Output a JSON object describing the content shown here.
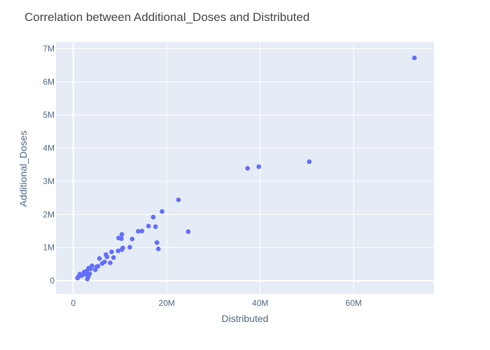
{
  "chart_data": {
    "type": "scatter",
    "title": "Correlation between Additional_Doses and Distributed",
    "xlabel": "Distributed",
    "ylabel": "Additional_Doses",
    "xlim": [
      -3700000,
      77200000
    ],
    "ylim": [
      -400000,
      7200000
    ],
    "x_ticks": [
      0,
      20000000,
      40000000,
      60000000
    ],
    "x_tick_labels": [
      "0",
      "20M",
      "40M",
      "60M"
    ],
    "y_ticks": [
      0,
      1000000,
      2000000,
      3000000,
      4000000,
      5000000,
      6000000,
      7000000
    ],
    "y_tick_labels": [
      "0",
      "1M",
      "2M",
      "3M",
      "4M",
      "5M",
      "6M",
      "7M"
    ],
    "grid": true,
    "colors": {
      "plot_bg": "#e5ecf6",
      "grid": "#ffffff",
      "marker": "#636efa"
    },
    "series": [
      {
        "points": [
          [
            900000,
            80000
          ],
          [
            1100000,
            120000
          ],
          [
            1400000,
            200000
          ],
          [
            1700000,
            150000
          ],
          [
            2000000,
            180000
          ],
          [
            2300000,
            260000
          ],
          [
            2600000,
            200000
          ],
          [
            2900000,
            300000
          ],
          [
            3000000,
            50000
          ],
          [
            3200000,
            120000
          ],
          [
            3300000,
            380000
          ],
          [
            3500000,
            210000
          ],
          [
            3700000,
            360000
          ],
          [
            4000000,
            450000
          ],
          [
            4700000,
            330000
          ],
          [
            5000000,
            420000
          ],
          [
            5300000,
            440000
          ],
          [
            5600000,
            670000
          ],
          [
            6200000,
            520000
          ],
          [
            6700000,
            570000
          ],
          [
            7000000,
            790000
          ],
          [
            7200000,
            720000
          ],
          [
            7900000,
            540000
          ],
          [
            8200000,
            870000
          ],
          [
            8600000,
            700000
          ],
          [
            9600000,
            900000
          ],
          [
            9700000,
            1290000
          ],
          [
            10300000,
            1270000
          ],
          [
            10400000,
            1400000
          ],
          [
            10400000,
            940000
          ],
          [
            10600000,
            990000
          ],
          [
            12100000,
            1010000
          ],
          [
            12600000,
            1260000
          ],
          [
            13900000,
            1490000
          ],
          [
            14700000,
            1500000
          ],
          [
            16100000,
            1650000
          ],
          [
            17100000,
            1920000
          ],
          [
            17600000,
            1630000
          ],
          [
            17900000,
            1150000
          ],
          [
            18200000,
            960000
          ],
          [
            19000000,
            2090000
          ],
          [
            22500000,
            2440000
          ],
          [
            24600000,
            1480000
          ],
          [
            37300000,
            3390000
          ],
          [
            39700000,
            3440000
          ],
          [
            50500000,
            3590000
          ],
          [
            73000000,
            6720000
          ]
        ]
      }
    ]
  }
}
